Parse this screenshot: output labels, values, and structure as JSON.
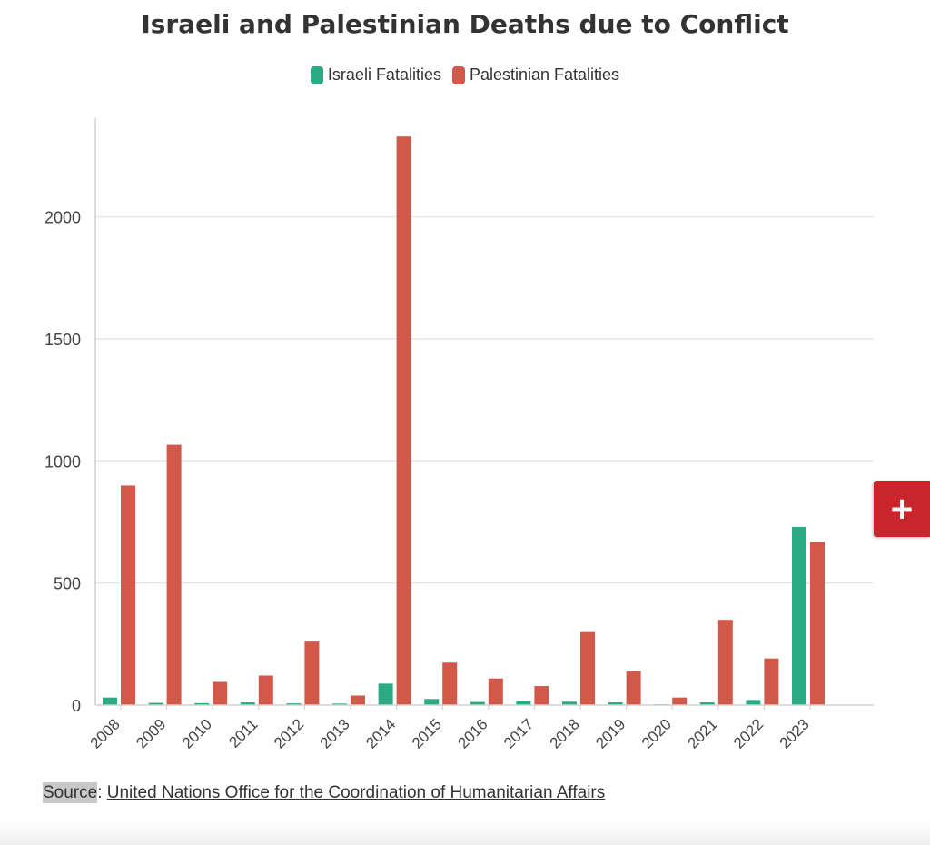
{
  "chart_data": {
    "type": "bar",
    "title": "Israeli and Palestinian Deaths due to Conflict",
    "categories": [
      "2008",
      "2009",
      "2010",
      "2011",
      "2012",
      "2013",
      "2014",
      "2015",
      "2016",
      "2017",
      "2018",
      "2019",
      "2020",
      "2021",
      "2022",
      "2023"
    ],
    "series": [
      {
        "name": "Israeli Fatalities",
        "color": "#2aab84",
        "values": [
          31,
          9,
          8,
          11,
          7,
          6,
          88,
          25,
          13,
          18,
          14,
          11,
          3,
          11,
          21,
          730
        ]
      },
      {
        "name": "Palestinian Fatalities",
        "color": "#d2584a",
        "values": [
          899,
          1066,
          95,
          121,
          260,
          39,
          2329,
          174,
          109,
          78,
          299,
          139,
          31,
          349,
          191,
          668
        ]
      }
    ],
    "yticks": [
      0,
      500,
      1000,
      1500,
      2000
    ],
    "ylim": [
      0,
      2400
    ],
    "xlabel": "",
    "ylabel": "",
    "grid": true,
    "legend_position": "top-center"
  },
  "source": {
    "label": "Source",
    "link_text": "United Nations Office for the Coordination of Humanitarian Affairs"
  },
  "expand_button": {
    "icon": "plus-icon",
    "symbol": "+"
  }
}
